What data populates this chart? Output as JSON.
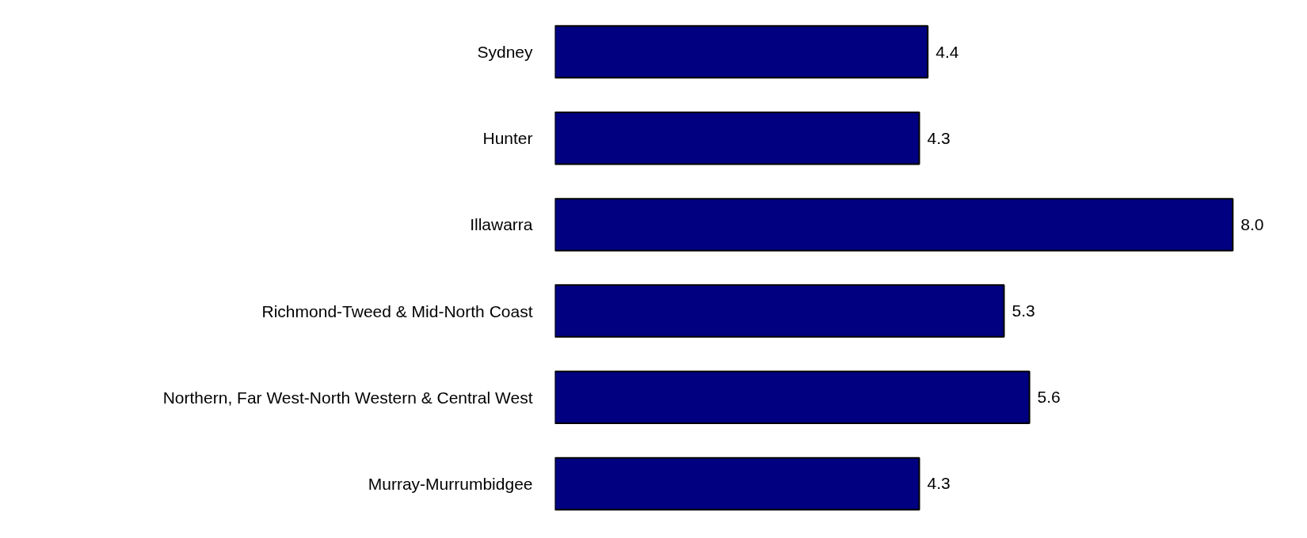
{
  "chart_data": {
    "type": "bar",
    "orientation": "horizontal",
    "tick_labels": "y",
    "grid": false,
    "categories": [
      "Sydney",
      "Hunter",
      "Illawarra",
      "Richmond-Tweed & Mid-North Coast",
      "Northern, Far West-North Western & Central West",
      "Murray-Murrumbidgee"
    ],
    "values": [
      4.4,
      4.3,
      8.0,
      5.3,
      5.6,
      4.3
    ],
    "value_labels": [
      "4.4",
      "4.3",
      "8.0",
      "5.3",
      "5.6",
      "4.3"
    ],
    "color": "#000080"
  }
}
